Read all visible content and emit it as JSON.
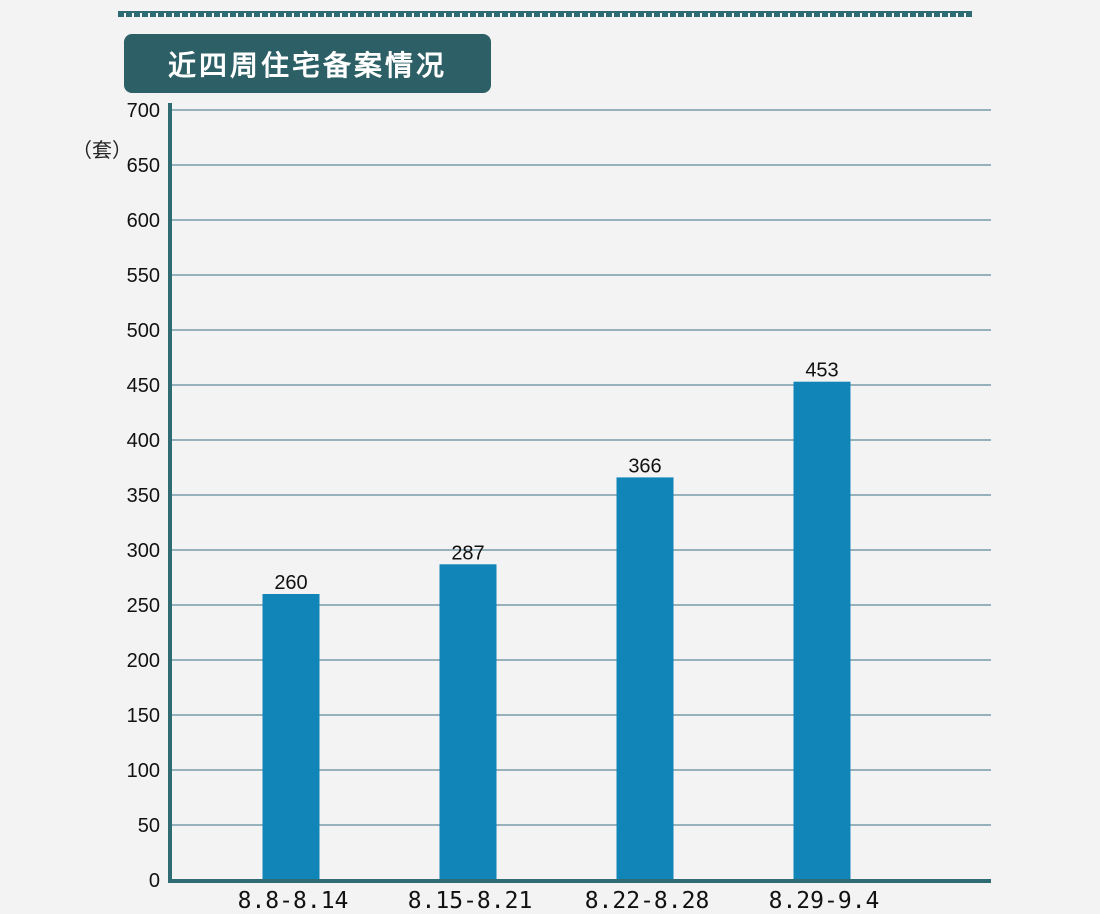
{
  "chart_data": {
    "type": "bar",
    "title": "近四周住宅备案情况",
    "ylabel": "（套）",
    "xlabel": "",
    "categories": [
      "8.8-8.14",
      "8.15-8.21",
      "8.22-8.28",
      "8.29-9.4"
    ],
    "values": [
      260,
      287,
      366,
      453
    ],
    "data_labels": [
      "260",
      "287",
      "366",
      "453"
    ],
    "ylim": [
      0,
      700
    ],
    "yticks": [
      0,
      50,
      100,
      150,
      200,
      250,
      300,
      350,
      400,
      450,
      500,
      550,
      600,
      650,
      700
    ],
    "grid": true,
    "legend": "none",
    "colors": {
      "bar": "#1185b8",
      "axis": "#2f6b73",
      "grid": "#3a6f86",
      "title_bg": "#2d5f66"
    }
  }
}
